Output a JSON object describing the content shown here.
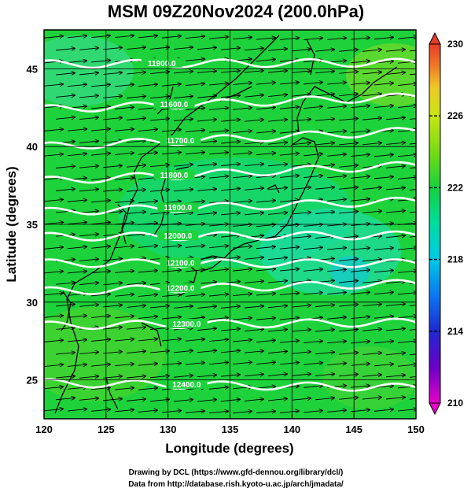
{
  "title": "MSM 09Z20Nov2024 (200.0hPa)",
  "xlabel": "Longitude (degrees)",
  "ylabel": "Latitude  (degrees)",
  "credits": {
    "line1": "Drawing by DCL (https://www.gfd-dennou.org/library/dcl/)",
    "line2": "Data from http://database.rish.kyoto-u.ac.jp/arch/jmadata/"
  },
  "colorbar": {
    "ticks": [
      "230",
      "226",
      "222",
      "218",
      "214",
      "210"
    ],
    "min": 210,
    "max": 230,
    "colors": [
      "#e600c8",
      "#6a00c8",
      "#1e28d2",
      "#0a78f0",
      "#00c8e6",
      "#00dca0",
      "#14d23c",
      "#78dc14",
      "#c8e614",
      "#f0c828",
      "#f07828",
      "#e63c28"
    ]
  },
  "chart_data": {
    "type": "map",
    "projection": "lon-lat",
    "field": "temperature (K) shaded, geopotential height contours, wind vectors",
    "xlim": [
      120,
      150
    ],
    "ylim": [
      22.5,
      47.5
    ],
    "xticks": [
      "120",
      "125",
      "130",
      "135",
      "140",
      "145",
      "150"
    ],
    "yticks": [
      "25",
      "30",
      "35",
      "40",
      "45"
    ],
    "grid": true,
    "contours": [
      {
        "label": "11900.0",
        "lat_at_120": 45.3,
        "lat_at_150": 45.4,
        "label_lon": 129.5
      },
      {
        "label": "11600.0",
        "lat_at_120": 42.4,
        "lat_at_150": 43.2,
        "label_lon": 130.5
      },
      {
        "label": "11700.0",
        "lat_at_120": 40.0,
        "lat_at_150": 41.0,
        "label_lon": 131.0
      },
      {
        "label": "11800.0",
        "lat_at_120": 37.8,
        "lat_at_150": 38.8,
        "label_lon": 130.5
      },
      {
        "label": "11900.0",
        "lat_at_120": 35.8,
        "lat_at_150": 36.5,
        "label_lon": 130.8
      },
      {
        "label": "12000.0",
        "lat_at_120": 34.2,
        "lat_at_150": 34.3,
        "label_lon": 130.8
      },
      {
        "label": "12100.0",
        "lat_at_120": 32.5,
        "lat_at_150": 32.5,
        "label_lon": 131.0
      },
      {
        "label": "12200.0",
        "lat_at_120": 30.7,
        "lat_at_150": 31.2,
        "label_lon": 131.0
      },
      {
        "label": "12300.0",
        "lat_at_120": 28.5,
        "lat_at_150": 28.7,
        "label_lon": 131.5
      },
      {
        "label": "12400.0",
        "lat_at_120": 24.8,
        "lat_at_150": 24.5,
        "label_lon": 131.5
      }
    ],
    "colorbar_range": [
      210,
      230
    ],
    "wind": "westerly, vectors on regular grid"
  }
}
